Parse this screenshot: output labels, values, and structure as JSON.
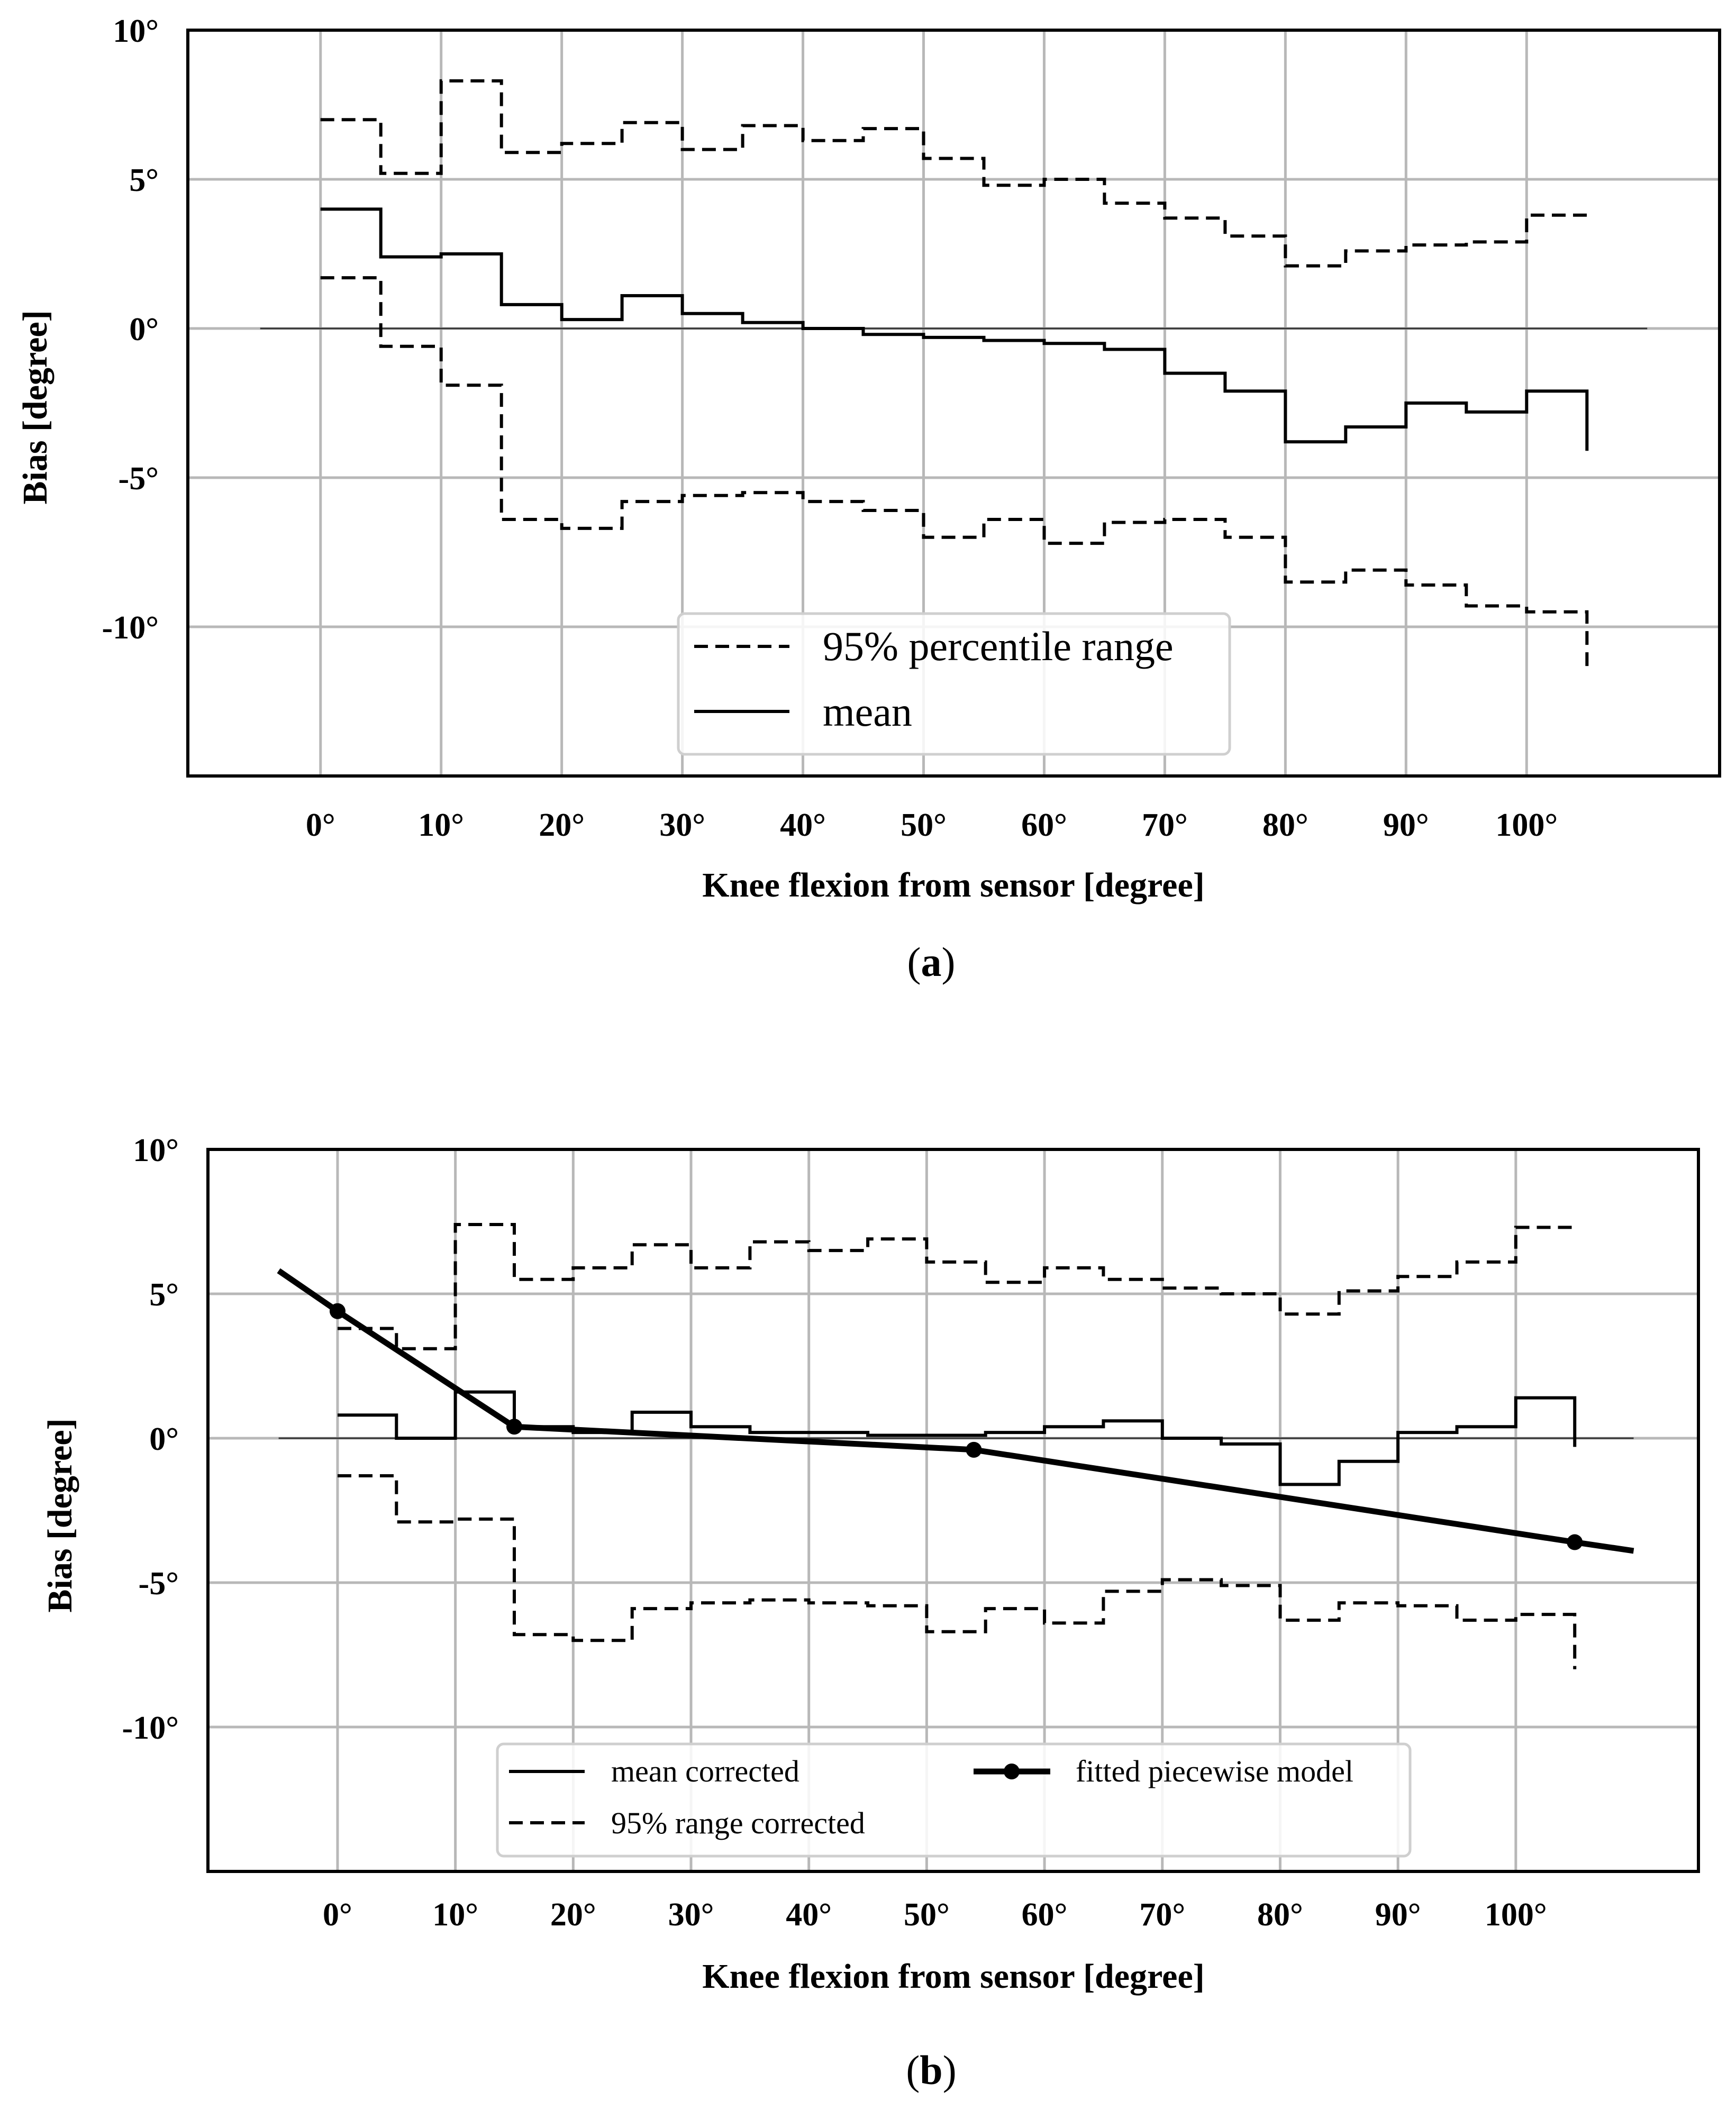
{
  "chart_data": [
    {
      "id": "a",
      "type": "line",
      "caption": "a",
      "xlabel": "Knee flexion from sensor [degree]",
      "ylabel": "Bias [degree]",
      "xlim": [
        -11,
        116
      ],
      "ylim": [
        -15,
        10
      ],
      "x_ticks": [
        0,
        10,
        20,
        30,
        40,
        50,
        60,
        70,
        80,
        90,
        100
      ],
      "x_tick_labels": [
        "0°",
        "10°",
        "20°",
        "30°",
        "40°",
        "50°",
        "60°",
        "70°",
        "80°",
        "90°",
        "100°"
      ],
      "y_ticks": [
        10,
        5,
        0,
        -5,
        -10
      ],
      "y_tick_labels": [
        "10°",
        "5°",
        "0°",
        "-5°",
        "-10°"
      ],
      "zero_line": [
        -5,
        110
      ],
      "grid": true,
      "legend": {
        "placement": "lower-center",
        "entries": [
          "95% percentile range",
          "mean"
        ]
      },
      "series": [
        {
          "name": "95% percentile range",
          "style": "dashed",
          "step_x": [
            0,
            5,
            10,
            15,
            20,
            25,
            30,
            35,
            40,
            45,
            50,
            55,
            60,
            65,
            70,
            75,
            80,
            85,
            90,
            95,
            100,
            105
          ],
          "values": [
            7.0,
            5.2,
            8.3,
            5.9,
            6.2,
            6.9,
            6.0,
            6.8,
            6.3,
            6.7,
            5.7,
            4.8,
            5.0,
            4.2,
            3.7,
            3.1,
            2.1,
            2.6,
            2.8,
            2.9,
            3.8
          ]
        },
        {
          "name": "95% percentile range (lower)",
          "style": "dashed",
          "step_x": [
            0,
            5,
            10,
            15,
            20,
            25,
            30,
            35,
            40,
            45,
            50,
            55,
            60,
            65,
            70,
            75,
            80,
            85,
            90,
            95,
            100,
            105
          ],
          "values": [
            1.7,
            -0.6,
            -1.9,
            -6.4,
            -6.7,
            -5.8,
            -5.6,
            -5.5,
            -5.8,
            -6.1,
            -7.0,
            -6.4,
            -7.2,
            -6.5,
            -6.4,
            -7.0,
            -8.5,
            -8.1,
            -8.6,
            -9.3,
            -9.5
          ],
          "tail": -11.5
        },
        {
          "name": "mean",
          "style": "solid",
          "step_x": [
            0,
            5,
            10,
            15,
            20,
            25,
            30,
            35,
            40,
            45,
            50,
            55,
            60,
            65,
            70,
            75,
            80,
            85,
            90,
            95,
            100,
            105
          ],
          "values": [
            4.0,
            2.4,
            2.5,
            0.8,
            0.3,
            1.1,
            0.5,
            0.2,
            0.0,
            -0.2,
            -0.3,
            -0.4,
            -0.5,
            -0.7,
            -1.5,
            -2.1,
            -3.8,
            -3.3,
            -2.5,
            -2.8,
            -2.1
          ],
          "tail": -4.1
        }
      ]
    },
    {
      "id": "b",
      "type": "line",
      "caption": "b",
      "xlabel": "Knee flexion from sensor [degree]",
      "ylabel": "Bias [degree]",
      "xlim": [
        -11,
        115.5
      ],
      "ylim": [
        -15,
        10
      ],
      "x_ticks": [
        0,
        10,
        20,
        30,
        40,
        50,
        60,
        70,
        80,
        90,
        100
      ],
      "x_tick_labels": [
        "0°",
        "10°",
        "20°",
        "30°",
        "40°",
        "50°",
        "60°",
        "70°",
        "80°",
        "90°",
        "100°"
      ],
      "y_ticks": [
        10,
        5,
        0,
        -5,
        -10
      ],
      "y_tick_labels": [
        "10°",
        "5°",
        "0°",
        "-5°",
        "-10°"
      ],
      "zero_line": [
        -5,
        110
      ],
      "grid": true,
      "legend": {
        "placement": "lower-center",
        "entries": [
          "mean corrected",
          "fitted piecewise model",
          "95% range corrected"
        ]
      },
      "series": [
        {
          "name": "95% range corrected",
          "style": "dashed",
          "step_x": [
            0,
            5,
            10,
            15,
            20,
            25,
            30,
            35,
            40,
            45,
            50,
            55,
            60,
            65,
            70,
            75,
            80,
            85,
            90,
            95,
            100,
            105
          ],
          "values": [
            3.8,
            3.1,
            7.4,
            5.5,
            5.9,
            6.7,
            5.9,
            6.8,
            6.5,
            6.9,
            6.1,
            5.4,
            5.9,
            5.5,
            5.2,
            5.0,
            4.3,
            5.1,
            5.6,
            6.1,
            7.3
          ]
        },
        {
          "name": "95% range corrected (lower)",
          "style": "dashed",
          "step_x": [
            0,
            5,
            10,
            15,
            20,
            25,
            30,
            35,
            40,
            45,
            50,
            55,
            60,
            65,
            70,
            75,
            80,
            85,
            90,
            95,
            100,
            105
          ],
          "values": [
            -1.3,
            -2.9,
            -2.8,
            -6.8,
            -7.0,
            -5.9,
            -5.7,
            -5.6,
            -5.7,
            -5.8,
            -6.7,
            -5.9,
            -6.4,
            -5.3,
            -4.9,
            -5.1,
            -6.3,
            -5.7,
            -5.8,
            -6.3,
            -6.1
          ],
          "tail": -8.0
        },
        {
          "name": "mean corrected",
          "style": "solid",
          "step_x": [
            0,
            5,
            10,
            15,
            20,
            25,
            30,
            35,
            40,
            45,
            50,
            55,
            60,
            65,
            70,
            75,
            80,
            85,
            90,
            95,
            100,
            105
          ],
          "values": [
            0.8,
            0.0,
            1.6,
            0.4,
            0.2,
            0.9,
            0.4,
            0.2,
            0.2,
            0.1,
            0.1,
            0.2,
            0.4,
            0.6,
            0.0,
            -0.2,
            -1.6,
            -0.8,
            0.2,
            0.4,
            1.4
          ],
          "tail": -0.3
        },
        {
          "name": "fitted piecewise model",
          "style": "bold",
          "x": [
            -5,
            0,
            15,
            54,
            105,
            110
          ],
          "y": [
            5.8,
            4.4,
            0.4,
            -0.4,
            -3.6,
            -3.9
          ],
          "markers": [
            0,
            15,
            54,
            105
          ]
        }
      ]
    }
  ]
}
